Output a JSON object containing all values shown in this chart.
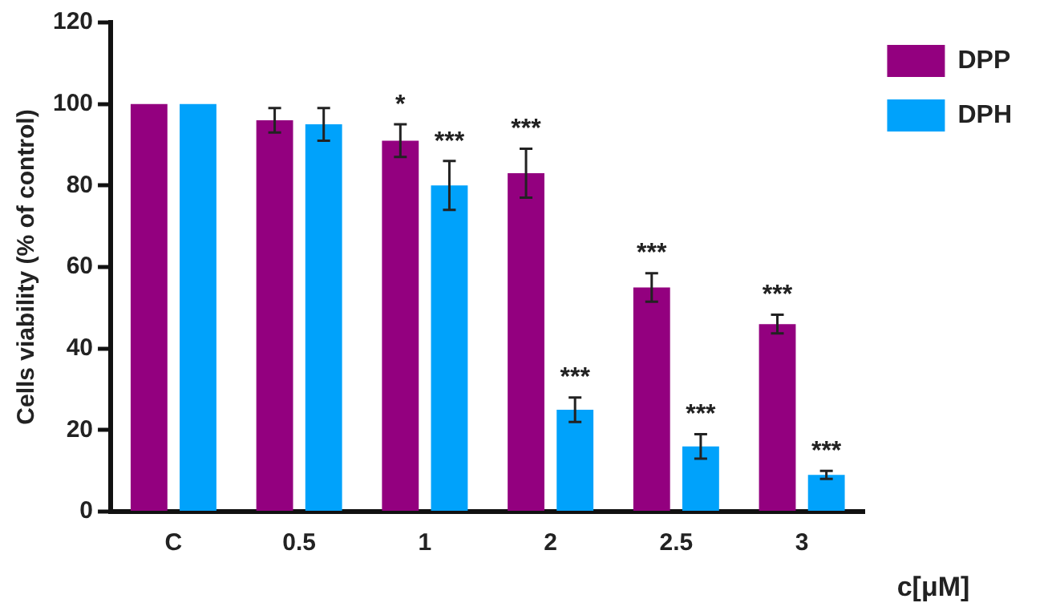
{
  "chart_data": {
    "type": "bar",
    "ylabel": "Cells viability (% of control)",
    "xlabel": "c[μM]",
    "categories": [
      "C",
      "0.5",
      "1",
      "2",
      "2.5",
      "3"
    ],
    "series": [
      {
        "name": "DPP",
        "color": "#93007f",
        "values": [
          100,
          96,
          91,
          83,
          55,
          46
        ],
        "errors": [
          null,
          3,
          4,
          6,
          3.5,
          2.3
        ],
        "value_labels": [
          null,
          null,
          "*",
          "***",
          "***",
          "***"
        ]
      },
      {
        "name": "DPH",
        "color": "#00a2fb",
        "values": [
          100,
          95,
          80,
          25,
          16,
          9
        ],
        "errors": [
          null,
          4,
          6,
          3,
          3,
          1
        ],
        "value_labels": [
          null,
          null,
          "***",
          "***",
          "***",
          "***"
        ]
      }
    ],
    "ylim": [
      0,
      120
    ],
    "yticks": [
      0,
      20,
      40,
      60,
      80,
      100,
      120
    ],
    "grid": false,
    "legend": "top right"
  }
}
